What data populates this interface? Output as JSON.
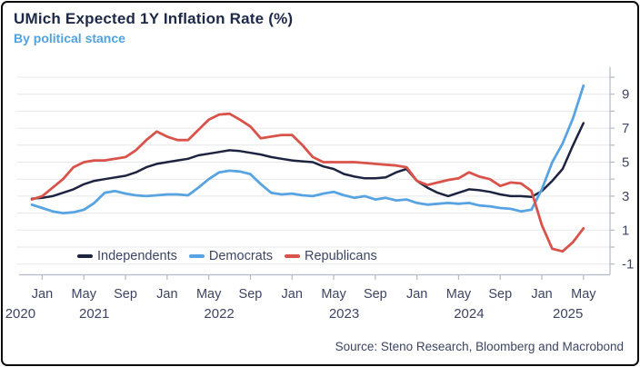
{
  "header": {
    "title": "UMich Expected 1Y Inflation Rate (%)",
    "subtitle": "By political stance"
  },
  "footer": {
    "source": "Source: Steno Research, Bloomberg and Macrobond"
  },
  "colors": {
    "border": "#0a0a0a",
    "title_text": "#1d2947",
    "subtitle_text": "#4fa3e0",
    "grid": "#e6e7ea",
    "axis": "#b4b9c6",
    "tick_text": "#3d4560"
  },
  "chart_data": {
    "type": "line",
    "title": "UMich Expected 1Y Inflation Rate (%)",
    "subtitle": "By political stance",
    "grid": "horizontal-only",
    "legend_position": "inside-bottom-left",
    "y_axis": {
      "side": "right",
      "ylim": [
        -1.6,
        10.6
      ],
      "gridline_values": [
        -1,
        0,
        1,
        2,
        3,
        4,
        5,
        6,
        7,
        8,
        9,
        10
      ],
      "tick_label_values": [
        9,
        7,
        5,
        3,
        1,
        -1
      ]
    },
    "x_axis": {
      "tick_labels": [
        {
          "month_index": 1,
          "label": "Jan"
        },
        {
          "month_index": 5,
          "label": "May"
        },
        {
          "month_index": 9,
          "label": "Sep"
        },
        {
          "month_index": 13,
          "label": "Jan"
        },
        {
          "month_index": 17,
          "label": "May"
        },
        {
          "month_index": 21,
          "label": "Sep"
        },
        {
          "month_index": 25,
          "label": "Jan"
        },
        {
          "month_index": 29,
          "label": "May"
        },
        {
          "month_index": 33,
          "label": "Sep"
        },
        {
          "month_index": 37,
          "label": "Jan"
        },
        {
          "month_index": 41,
          "label": "May"
        },
        {
          "month_index": 45,
          "label": "Sep"
        },
        {
          "month_index": 49,
          "label": "Jan"
        },
        {
          "month_index": 53,
          "label": "May"
        }
      ],
      "year_labels": [
        {
          "label": "2020",
          "center_month_index": -1.1
        },
        {
          "label": "2021",
          "center_month_index": 6
        },
        {
          "label": "2022",
          "center_month_index": 18
        },
        {
          "label": "2023",
          "center_month_index": 30
        },
        {
          "label": "2024",
          "center_month_index": 42
        },
        {
          "label": "2025",
          "center_month_index": 51.5
        }
      ]
    },
    "x_months": [
      "Dec 2020",
      "Jan 2021",
      "Feb 2021",
      "Mar 2021",
      "Apr 2021",
      "May 2021",
      "Jun 2021",
      "Jul 2021",
      "Aug 2021",
      "Sep 2021",
      "Oct 2021",
      "Nov 2021",
      "Dec 2021",
      "Jan 2022",
      "Feb 2022",
      "Mar 2022",
      "Apr 2022",
      "May 2022",
      "Jun 2022",
      "Jul 2022",
      "Aug 2022",
      "Sep 2022",
      "Oct 2022",
      "Nov 2022",
      "Dec 2022",
      "Jan 2023",
      "Feb 2023",
      "Mar 2023",
      "Apr 2023",
      "May 2023",
      "Jun 2023",
      "Jul 2023",
      "Aug 2023",
      "Sep 2023",
      "Oct 2023",
      "Nov 2023",
      "Dec 2023",
      "Jan 2024",
      "Feb 2024",
      "Mar 2024",
      "Apr 2024",
      "May 2024",
      "Jun 2024",
      "Jul 2024",
      "Aug 2024",
      "Sep 2024",
      "Oct 2024",
      "Nov 2024",
      "Dec 2024",
      "Jan 2025",
      "Feb 2025",
      "Mar 2025",
      "Apr 2025",
      "May 2025"
    ],
    "series": [
      {
        "name": "Independents",
        "color": "#1e2440",
        "line_width": 2.5,
        "values": [
          2.85,
          2.9,
          3.0,
          3.2,
          3.4,
          3.7,
          3.9,
          4.0,
          4.1,
          4.2,
          4.4,
          4.7,
          4.9,
          5.0,
          5.1,
          5.2,
          5.4,
          5.5,
          5.6,
          5.7,
          5.65,
          5.55,
          5.45,
          5.3,
          5.2,
          5.1,
          5.05,
          5.0,
          4.75,
          4.6,
          4.3,
          4.15,
          4.05,
          4.05,
          4.1,
          4.4,
          4.6,
          3.9,
          3.5,
          3.2,
          3.0,
          3.2,
          3.4,
          3.35,
          3.25,
          3.1,
          3.0,
          3.0,
          2.95,
          3.3,
          3.9,
          4.6,
          6.0,
          7.3
        ]
      },
      {
        "name": "Democrats",
        "color": "#58a3e1",
        "line_width": 2.8,
        "values": [
          2.5,
          2.3,
          2.1,
          2.0,
          2.05,
          2.2,
          2.6,
          3.2,
          3.3,
          3.15,
          3.05,
          3.0,
          3.05,
          3.1,
          3.1,
          3.05,
          3.5,
          4.0,
          4.4,
          4.5,
          4.45,
          4.3,
          3.7,
          3.2,
          3.1,
          3.15,
          3.05,
          3.0,
          3.15,
          3.25,
          3.05,
          2.9,
          3.0,
          2.8,
          2.9,
          2.75,
          2.8,
          2.6,
          2.5,
          2.55,
          2.6,
          2.55,
          2.6,
          2.45,
          2.4,
          2.3,
          2.25,
          2.1,
          2.2,
          3.4,
          5.0,
          6.1,
          7.6,
          9.5
        ]
      },
      {
        "name": "Republicans",
        "color": "#d9534b",
        "line_width": 2.8,
        "values": [
          2.8,
          3.0,
          3.5,
          4.0,
          4.7,
          5.0,
          5.1,
          5.1,
          5.2,
          5.3,
          5.7,
          6.3,
          6.8,
          6.5,
          6.3,
          6.3,
          6.9,
          7.5,
          7.8,
          7.85,
          7.5,
          7.1,
          6.4,
          6.5,
          6.6,
          6.6,
          6.0,
          5.3,
          5.0,
          5.0,
          5.0,
          5.0,
          4.95,
          4.9,
          4.85,
          4.8,
          4.7,
          3.9,
          3.65,
          3.8,
          3.95,
          4.05,
          4.4,
          4.15,
          4.0,
          3.6,
          3.8,
          3.75,
          3.3,
          1.3,
          -0.1,
          -0.25,
          0.3,
          1.1
        ]
      }
    ]
  }
}
